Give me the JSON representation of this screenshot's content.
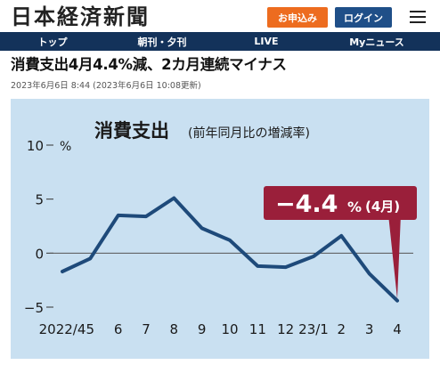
{
  "header": {
    "logo_text": "日本経済新聞",
    "signup_label": "お申込み",
    "login_label": "ログイン",
    "menu_icon": "hamburger-menu-icon"
  },
  "nav": {
    "items": [
      {
        "label": "トップ"
      },
      {
        "label": "朝刊・夕刊"
      },
      {
        "label": "LIVE"
      },
      {
        "label": "Myニュース"
      }
    ]
  },
  "article": {
    "headline": "消費支出4月4.4%減、2カ月連続マイナス",
    "dateline": "2023年6月6日 8:44 (2023年6月6日 10:08更新)"
  },
  "colors": {
    "brand_navy": "#13325a",
    "signup_orange": "#ed6c1f",
    "login_blue": "#1f4f88",
    "chart_bg": "#c9e0f1",
    "line": "#1e4a7a",
    "callout": "#9a1f3a"
  },
  "chart_data": {
    "type": "line",
    "title": "消費支出",
    "subtitle": "(前年同月比の増減率)",
    "ylabel": "%",
    "ylim": [
      -5,
      10
    ],
    "yticks": [
      10,
      5,
      0,
      -5
    ],
    "categories": [
      "2022/4",
      "5",
      "6",
      "7",
      "8",
      "9",
      "10",
      "11",
      "12",
      "23/1",
      "2",
      "3",
      "4"
    ],
    "values": [
      -1.7,
      -0.5,
      3.5,
      3.4,
      5.1,
      2.3,
      1.2,
      -1.2,
      -1.3,
      -0.3,
      1.6,
      -1.9,
      -4.4
    ],
    "callout": {
      "value_text": "−4.4",
      "unit": "%",
      "period": "(4月)"
    },
    "grid": false,
    "legend": "none"
  }
}
